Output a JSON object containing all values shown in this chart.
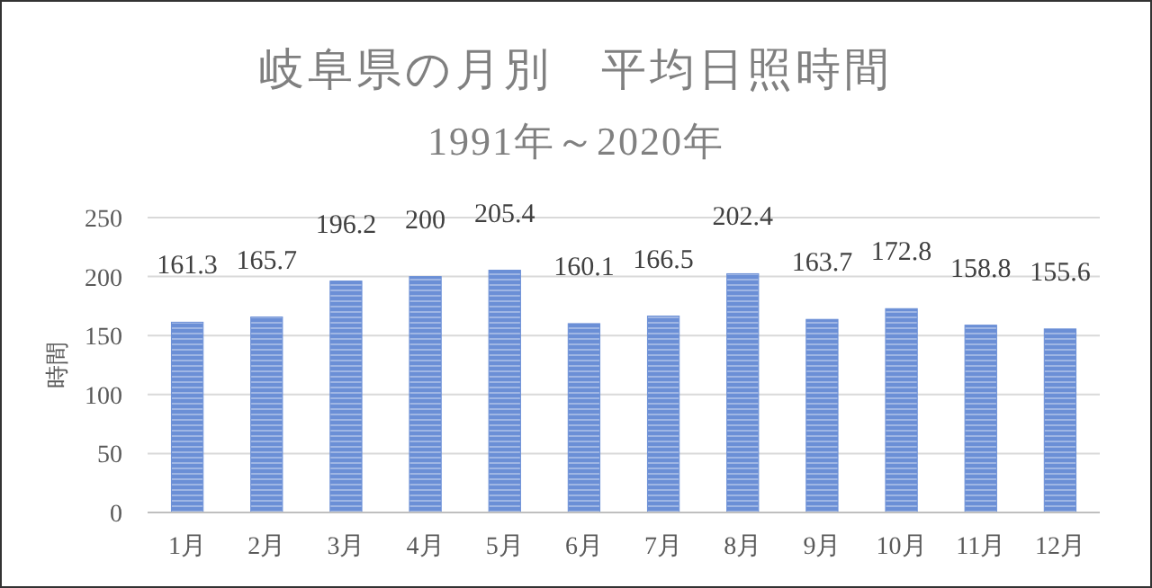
{
  "chart_data": {
    "type": "bar",
    "title": "岐阜県の月別　平均日照時間",
    "subtitle": "1991年～2020年",
    "ylabel": "時間",
    "categories": [
      "1月",
      "2月",
      "3月",
      "4月",
      "5月",
      "6月",
      "7月",
      "8月",
      "9月",
      "10月",
      "11月",
      "12月"
    ],
    "values": [
      161.3,
      165.7,
      196.2,
      200,
      205.4,
      160.1,
      166.5,
      202.4,
      163.7,
      172.8,
      158.8,
      155.6
    ],
    "color": "#6b8fd6",
    "ylim": [
      0,
      250
    ],
    "yticks": [
      0,
      50,
      100,
      150,
      200,
      250
    ],
    "grid": "y",
    "data_labels": true
  }
}
